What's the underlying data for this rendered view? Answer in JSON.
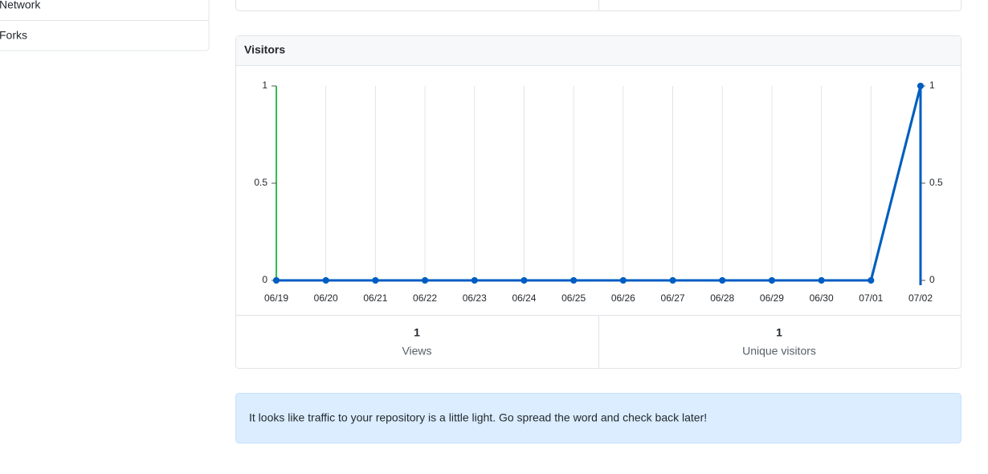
{
  "sidebar": {
    "items": [
      "Network",
      "Forks"
    ]
  },
  "panel_title": "Visitors",
  "chart_data": {
    "type": "line",
    "categories": [
      "06/19",
      "06/20",
      "06/21",
      "06/22",
      "06/23",
      "06/24",
      "06/25",
      "06/26",
      "06/27",
      "06/28",
      "06/29",
      "06/30",
      "07/01",
      "07/02"
    ],
    "series": [
      {
        "name": "Views",
        "color": "#2cbe4e",
        "values": [
          0,
          0,
          0,
          0,
          0,
          0,
          0,
          0,
          0,
          0,
          0,
          0,
          0,
          1
        ],
        "total": 1
      },
      {
        "name": "Unique visitors",
        "color": "#005cc5",
        "values": [
          0,
          0,
          0,
          0,
          0,
          0,
          0,
          0,
          0,
          0,
          0,
          0,
          0,
          1
        ],
        "total": 1,
        "axis": "y2"
      }
    ],
    "ylim": [
      0,
      1
    ],
    "yticks": [
      0,
      0.5,
      1
    ],
    "y2lim": [
      0,
      1
    ],
    "y2ticks": [
      0,
      0.5,
      1
    ],
    "grid": true
  },
  "notice": "It looks like traffic to your repository is a little light. Go spread the word and check back later!"
}
